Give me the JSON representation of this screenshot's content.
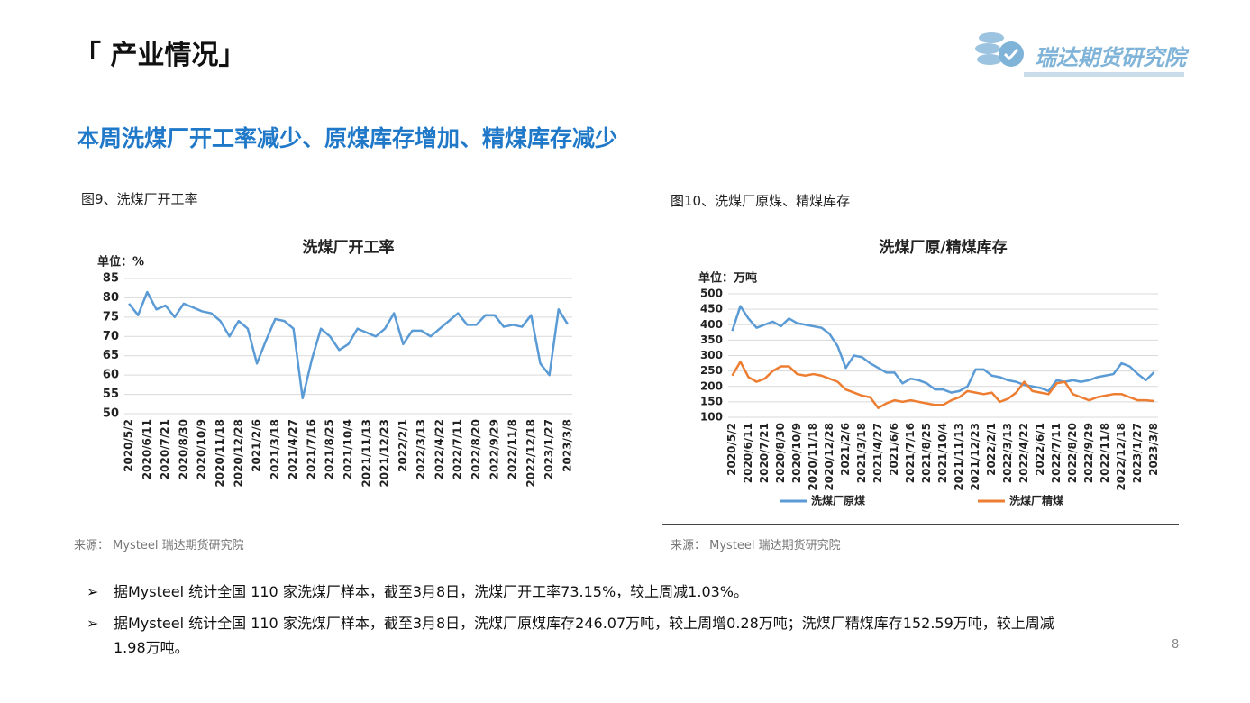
{
  "header": {
    "title": "「 产业情况」",
    "logo": "瑞达期货研究院"
  },
  "headline": "本周洗煤厂开工率减少、原煤库存增加、精煤库存减少",
  "figures": [
    {
      "caption": "图9、洗煤厂开工率",
      "source": "来源： Mysteel  瑞达期货研究院"
    },
    {
      "caption": "图10、洗煤厂原煤、精煤库存",
      "source": "来源： Mysteel  瑞达期货研究院"
    }
  ],
  "chart_data": [
    {
      "type": "line",
      "title": "洗煤厂开工率",
      "unit": "单位：%",
      "categories": [
        "2020/5/2",
        null,
        "2020/6/11",
        null,
        "2020/7/21",
        null,
        "2020/8/30",
        null,
        "2020/10/9",
        null,
        "2020/11/18",
        null,
        "2020/12/28",
        null,
        "2021/2/6",
        null,
        "2021/3/18",
        null,
        "2021/4/27",
        null,
        "2021/7/16",
        null,
        "2021/8/25",
        null,
        "2021/10/4",
        null,
        "2021/11/13",
        null,
        "2021/12/23",
        null,
        "2022/2/1",
        null,
        "2022/3/13",
        null,
        "2022/4/22",
        null,
        "2022/7/11",
        null,
        "2022/8/20",
        null,
        "2022/9/29",
        null,
        "2022/11/8",
        null,
        "2022/12/18",
        null,
        "2023/1/27",
        null,
        "2023/3/8"
      ],
      "values": [
        78.5,
        75.5,
        81.5,
        77,
        78,
        75,
        78.5,
        77.5,
        76.5,
        76,
        74,
        70,
        74,
        72,
        63,
        69,
        74.5,
        74,
        72,
        54,
        64,
        72,
        70,
        66.5,
        68,
        72,
        71,
        70,
        72,
        76,
        68,
        71.5,
        71.5,
        70,
        72,
        74,
        76,
        73,
        73,
        75.5,
        75.5,
        72.5,
        73,
        72.5,
        75.5,
        63,
        60,
        77,
        73.15
      ],
      "color": "#5b9bd5",
      "ylim": [
        50,
        85
      ],
      "yticks": [
        50,
        55,
        60,
        65,
        70,
        75,
        80,
        85
      ],
      "grid": true
    },
    {
      "type": "line",
      "title": "洗煤厂原/精煤库存",
      "unit": "单位：万吨",
      "categories": [
        "2020/5/2",
        null,
        "2020/6/11",
        null,
        "2020/7/21",
        null,
        "2020/8/30",
        null,
        "2020/10/9",
        null,
        "2020/11/18",
        null,
        "2020/12/28",
        null,
        "2021/2/6",
        null,
        "2021/3/18",
        null,
        "2021/4/27",
        null,
        "2021/6/6",
        null,
        "2021/7/16",
        null,
        "2021/8/25",
        null,
        "2021/10/4",
        null,
        "2021/11/13",
        null,
        "2021/12/23",
        null,
        "2022/2/1",
        null,
        "2022/3/13",
        null,
        "2022/4/22",
        null,
        "2022/6/1",
        null,
        "2022/7/11",
        null,
        "2022/8/20",
        null,
        "2022/9/29",
        null,
        "2022/11/8",
        null,
        "2022/12/18",
        null,
        "2023/1/27",
        null,
        "2023/3/8"
      ],
      "series": [
        {
          "name": "洗煤厂原煤",
          "color": "#5b9bd5",
          "values": [
            380,
            460,
            420,
            390,
            400,
            410,
            395,
            420,
            405,
            400,
            395,
            390,
            370,
            330,
            260,
            300,
            295,
            275,
            260,
            245,
            245,
            210,
            225,
            220,
            210,
            190,
            190,
            180,
            185,
            200,
            255,
            255,
            235,
            230,
            220,
            215,
            205,
            200,
            195,
            185,
            220,
            215,
            220,
            215,
            220,
            230,
            235,
            240,
            275,
            265,
            240,
            220,
            246.07
          ]
        },
        {
          "name": "洗煤厂精煤",
          "color": "#ed7d31",
          "values": [
            235,
            280,
            230,
            215,
            225,
            250,
            265,
            265,
            240,
            235,
            240,
            235,
            225,
            215,
            190,
            180,
            170,
            165,
            130,
            145,
            155,
            150,
            155,
            150,
            145,
            140,
            140,
            155,
            165,
            185,
            180,
            175,
            180,
            150,
            160,
            180,
            215,
            185,
            180,
            175,
            210,
            215,
            175,
            165,
            155,
            165,
            170,
            175,
            175,
            165,
            155,
            155,
            152.59
          ]
        }
      ],
      "ylim": [
        100,
        500
      ],
      "yticks": [
        100,
        150,
        200,
        250,
        300,
        350,
        400,
        450,
        500
      ],
      "grid": true,
      "legend": "bottom"
    }
  ],
  "bullets": [
    {
      "marker": "➢",
      "text": "据Mysteel 统计全国 110 家洗煤厂样本，截至3月8日，洗煤厂开工率73.15%，较上周减1.03%。"
    },
    {
      "marker": "➢",
      "text": "据Mysteel 统计全国 110 家洗煤厂样本，截至3月8日，洗煤厂原煤库存246.07万吨，较上周增0.28万吨；洗煤厂精煤库存152.59万吨，较上周减1.98万吨。"
    }
  ],
  "page_number": 8
}
